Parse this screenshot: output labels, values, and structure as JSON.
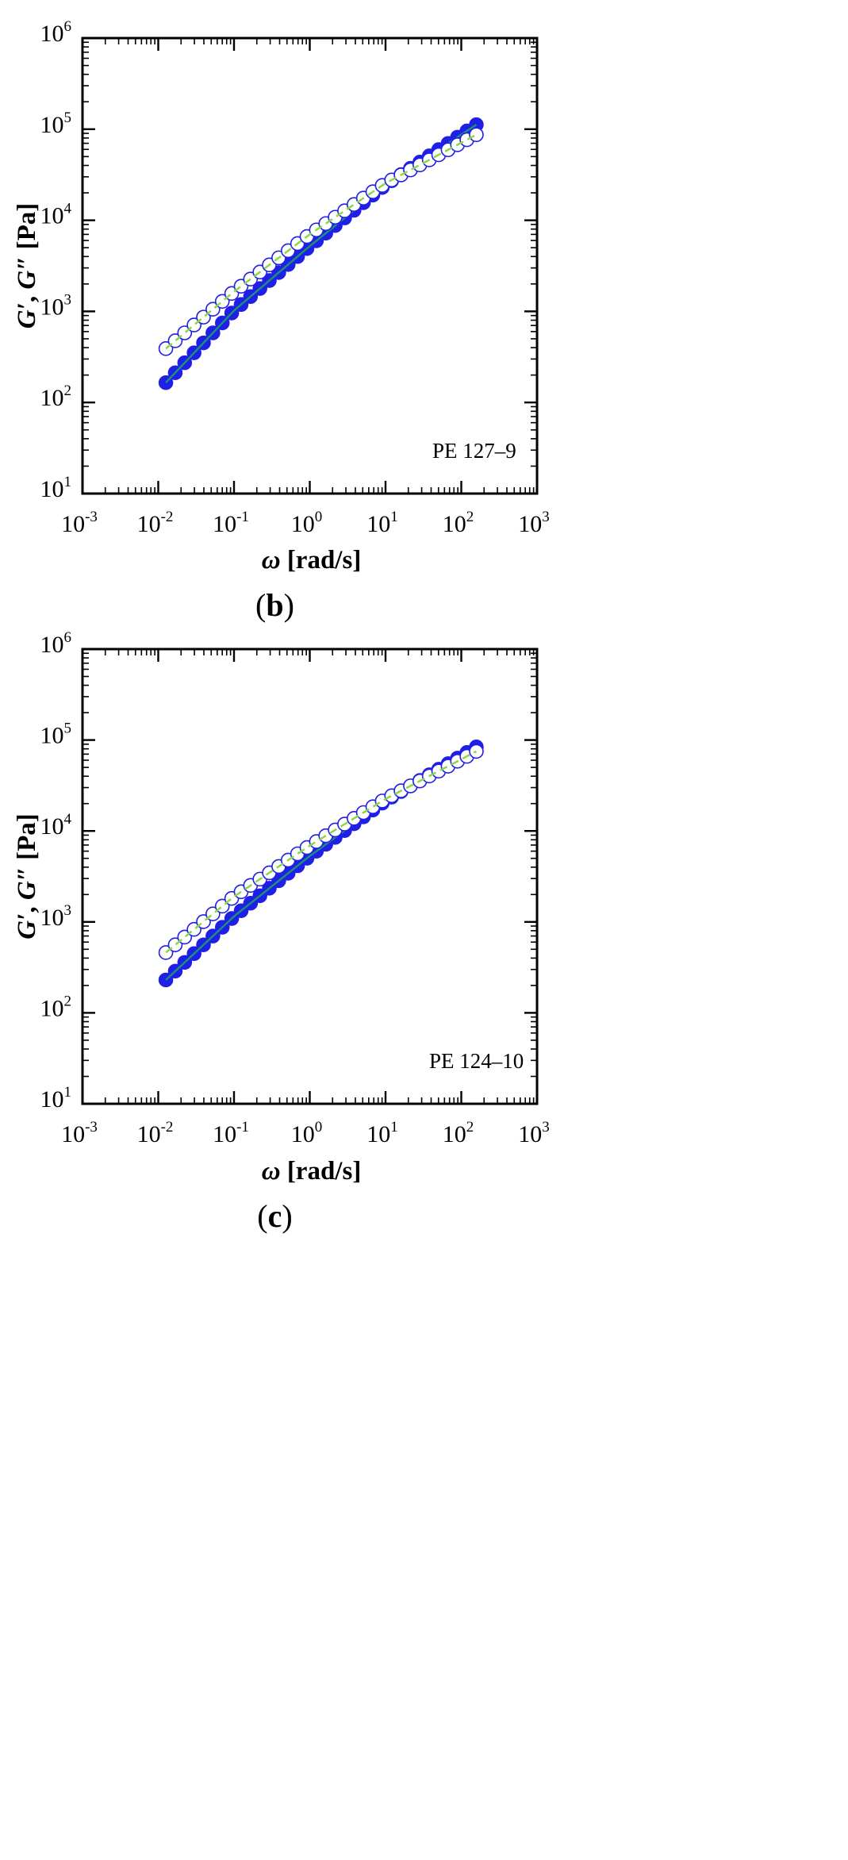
{
  "chart_data": [
    {
      "panel": "b",
      "caption": "(b)",
      "caption_letter": "b",
      "type": "scatter",
      "annotation": "PE 127–9",
      "xscale": "log",
      "yscale": "log",
      "xlim": [
        0.001,
        1000
      ],
      "ylim": [
        10,
        1000000
      ],
      "x_ticks": [
        {
          "base": "10",
          "exp": "-3"
        },
        {
          "base": "10",
          "exp": "-2"
        },
        {
          "base": "10",
          "exp": "-1"
        },
        {
          "base": "10",
          "exp": "0"
        },
        {
          "base": "10",
          "exp": "1"
        },
        {
          "base": "10",
          "exp": "2"
        },
        {
          "base": "10",
          "exp": "3"
        }
      ],
      "y_ticks": [
        {
          "base": "10",
          "exp": "1"
        },
        {
          "base": "10",
          "exp": "2"
        },
        {
          "base": "10",
          "exp": "3"
        },
        {
          "base": "10",
          "exp": "4"
        },
        {
          "base": "10",
          "exp": "5"
        },
        {
          "base": "10",
          "exp": "6"
        }
      ],
      "xlabel": {
        "symbol": "ω",
        "unit": " [rad/s]"
      },
      "ylabel": {
        "g1": "G′",
        "sep": ", ",
        "g2": "G″",
        "unit": " [Pa]"
      },
      "omega_range": [
        0.0126,
        158
      ],
      "points_per_decade": 8,
      "series": [
        {
          "name": "G'",
          "marker": "filled-circle",
          "line": "solid",
          "color": "#1f1fe6",
          "line_color": "#1a8f7a",
          "anchors": [
            [
              0.0126,
              165
            ],
            [
              0.1,
              1020
            ],
            [
              1,
              5200
            ],
            [
              10,
              24500
            ],
            [
              158,
              112000
            ]
          ]
        },
        {
          "name": "G''",
          "marker": "open-circle",
          "line": "dashed",
          "color": "#1f1fe6",
          "line_color": "#8ad84a",
          "anchors": [
            [
              0.0126,
              390
            ],
            [
              0.1,
              1650
            ],
            [
              1,
              7000
            ],
            [
              10,
              25500
            ],
            [
              158,
              87000
            ]
          ]
        }
      ]
    },
    {
      "panel": "c",
      "caption": "(c)",
      "caption_letter": "c",
      "type": "scatter",
      "annotation": "PE 124–10",
      "xscale": "log",
      "yscale": "log",
      "xlim": [
        0.001,
        1000
      ],
      "ylim": [
        10,
        1000000
      ],
      "x_ticks": [
        {
          "base": "10",
          "exp": "-3"
        },
        {
          "base": "10",
          "exp": "-2"
        },
        {
          "base": "10",
          "exp": "-1"
        },
        {
          "base": "10",
          "exp": "0"
        },
        {
          "base": "10",
          "exp": "1"
        },
        {
          "base": "10",
          "exp": "2"
        },
        {
          "base": "10",
          "exp": "3"
        }
      ],
      "y_ticks": [
        {
          "base": "10",
          "exp": "1"
        },
        {
          "base": "10",
          "exp": "2"
        },
        {
          "base": "10",
          "exp": "3"
        },
        {
          "base": "10",
          "exp": "4"
        },
        {
          "base": "10",
          "exp": "5"
        },
        {
          "base": "10",
          "exp": "6"
        }
      ],
      "xlabel": {
        "symbol": "ω",
        "unit": " [rad/s]"
      },
      "ylabel": {
        "g1": "G′",
        "sep": ", ",
        "g2": "G″",
        "unit": " [Pa]"
      },
      "omega_range": [
        0.0126,
        158
      ],
      "points_per_decade": 8,
      "series": [
        {
          "name": "G'",
          "marker": "filled-circle",
          "line": "solid",
          "color": "#1f1fe6",
          "line_color": "#1a8f7a",
          "anchors": [
            [
              0.0126,
              230
            ],
            [
              0.1,
              1150
            ],
            [
              1,
              5300
            ],
            [
              10,
              21500
            ],
            [
              158,
              84000
            ]
          ]
        },
        {
          "name": "G''",
          "marker": "open-circle",
          "line": "dashed",
          "color": "#1f1fe6",
          "line_color": "#8ad84a",
          "anchors": [
            [
              0.0126,
              460
            ],
            [
              0.1,
              1900
            ],
            [
              1,
              6900
            ],
            [
              10,
              22500
            ],
            [
              158,
              75000
            ]
          ]
        }
      ]
    }
  ]
}
